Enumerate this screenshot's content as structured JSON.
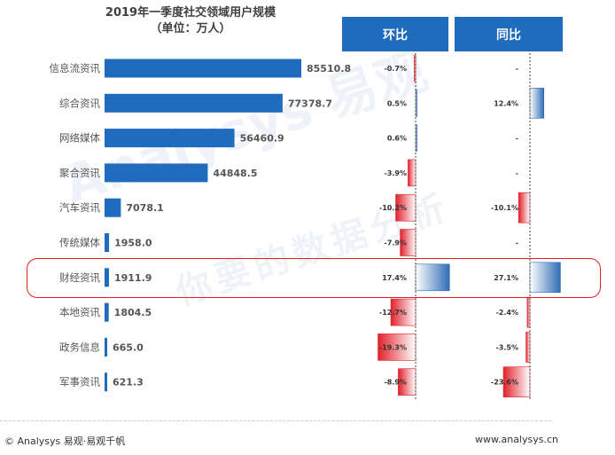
{
  "title": {
    "line1": "2019年一季度社交领域用户规模",
    "line2": "（单位：万人）"
  },
  "headers": {
    "qoq": "环比",
    "yoy": "同比"
  },
  "watermark": {
    "brand": "Analysys 易观",
    "slogan": "你要的数据分析"
  },
  "footer": {
    "left": "© Analysys 易观·易观千帆",
    "right": "www.analysys.cn"
  },
  "colors": {
    "bar": "#1f6bbd",
    "header": "#1f6bbd",
    "positive": "#2f6cb5",
    "negative": "#e0202a",
    "highlight_border": "#e02020"
  },
  "chart_data": {
    "type": "bar",
    "categories": [
      "信息流资讯",
      "综合资讯",
      "网络媒体",
      "聚合资讯",
      "汽车资讯",
      "传统媒体",
      "财经资讯",
      "本地资讯",
      "政务信息",
      "军事资讯"
    ],
    "series": [
      {
        "values": [
          85510.8,
          77378.7,
          56460.9,
          44848.5,
          7078.1,
          1958.0,
          1911.9,
          1804.5,
          665.0,
          621.3
        ],
        "labels": [
          "85510.8",
          "77378.7",
          "56460.9",
          "44848.5",
          "7078.1",
          "1958.0",
          "1911.9",
          "1804.5",
          "665.0",
          "621.3"
        ]
      },
      {
        "name": "环比",
        "values": [
          -0.7,
          0.5,
          0.6,
          -3.9,
          -10.2,
          -7.9,
          17.4,
          -12.7,
          -19.3,
          -8.9
        ],
        "labels": [
          "-0.7%",
          "0.5%",
          "0.6%",
          "-3.9%",
          "-10.2%",
          "-7.9%",
          "17.4%",
          "-12.7%",
          "-19.3%",
          "-8.9%"
        ]
      },
      {
        "name": "同比",
        "values": [
          null,
          12.4,
          null,
          null,
          -10.1,
          null,
          27.1,
          -2.4,
          -3.5,
          -23.6
        ],
        "labels": [
          "-",
          "12.4%",
          "-",
          "-",
          "-10.1%",
          "-",
          "27.1%",
          "-2.4%",
          "-3.5%",
          "-23.6%"
        ]
      }
    ],
    "highlighted_category": "财经资讯"
  }
}
